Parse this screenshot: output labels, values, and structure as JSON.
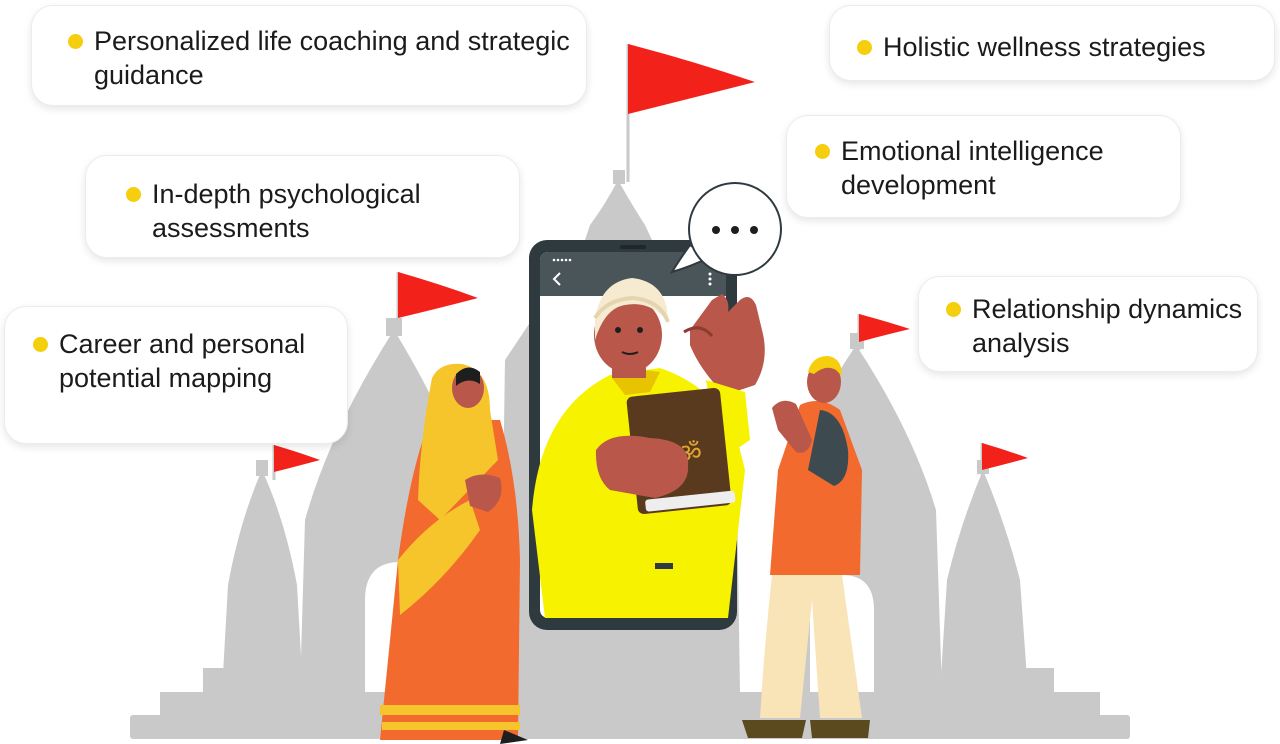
{
  "cards": [
    {
      "label": "Personalized life coaching and strategic guidance"
    },
    {
      "label": "Holistic wellness strategies"
    },
    {
      "label": "In-depth psychological assessments"
    },
    {
      "label": "Emotional intelligence development"
    },
    {
      "label": "Career and personal potential mapping"
    },
    {
      "label": "Relationship dynamics analysis"
    }
  ],
  "colors": {
    "bullet": "#f5cf0e",
    "temple": "#c9c9c9",
    "flag": "#f2221b",
    "phone_frame": "#2f3a3f",
    "robe_yellow": "#f6f200",
    "saree_orange": "#f26a2d",
    "skin": "#b9574a"
  },
  "icons": [
    "speech-bubble-icon",
    "back-arrow-icon",
    "more-options-icon",
    "om-symbol-icon"
  ]
}
